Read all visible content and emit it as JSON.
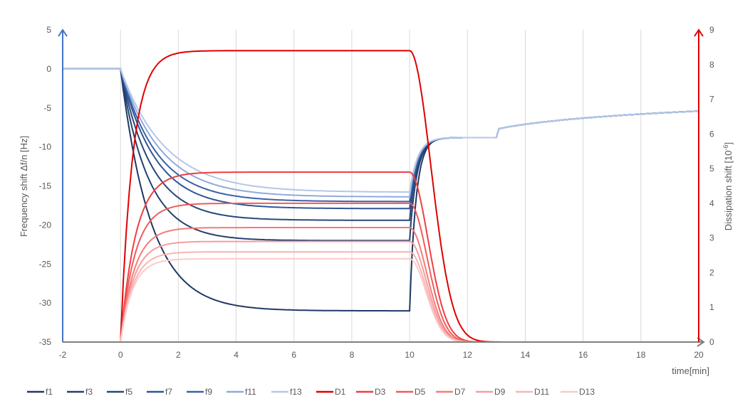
{
  "chart_data": {
    "type": "line",
    "title": "",
    "xlabel": "time[min]",
    "ylabel_left": "Frequency shift  Δf/n [Hz]",
    "ylabel_right_prefix": "Dissipation shift [10",
    "ylabel_right_exp": "-6",
    "ylabel_right_suffix": "]",
    "xlim": [
      -2,
      20
    ],
    "ylim_left": [
      -35,
      5
    ],
    "ylim_right": [
      0,
      9
    ],
    "x_ticks": [
      -2,
      0,
      2,
      4,
      6,
      8,
      10,
      12,
      14,
      16,
      18,
      20
    ],
    "y_left_ticks": [
      -35,
      -30,
      -25,
      -20,
      -15,
      -10,
      -5,
      0,
      5
    ],
    "y_right_ticks": [
      0,
      1,
      2,
      3,
      4,
      5,
      6,
      7,
      8,
      9
    ],
    "grid": "vertical",
    "legend_position": "bottom",
    "colors": {
      "left_axis": "#4472c4",
      "right_axis": "#e00000",
      "x_axis": "#7f7f7f",
      "grid": "#d9d9d9"
    },
    "frequency_series": [
      {
        "name": "f1",
        "color": "#203864",
        "plateau": -31.0,
        "k": 0.95
      },
      {
        "name": "f3",
        "color": "#23406f",
        "plateau": -22.0,
        "k": 1.05
      },
      {
        "name": "f5",
        "color": "#27487b",
        "plateau": -19.4,
        "k": 0.95
      },
      {
        "name": "f7",
        "color": "#2f5597",
        "plateau": -17.9,
        "k": 0.85
      },
      {
        "name": "f9",
        "color": "#3a62a8",
        "plateau": -17.0,
        "k": 0.8
      },
      {
        "name": "f11",
        "color": "#8faadc",
        "plateau": -16.4,
        "k": 0.72
      },
      {
        "name": "f13",
        "color": "#b4c7e7",
        "plateau": -15.8,
        "k": 0.65
      }
    ],
    "dissipation_series": [
      {
        "name": "D1",
        "color": "#e00000",
        "plateau": 8.4,
        "k": 2.4
      },
      {
        "name": "D3",
        "color": "#ef3f3f",
        "plateau": 4.9,
        "k": 1.9
      },
      {
        "name": "D5",
        "color": "#f25a5a",
        "plateau": 4.0,
        "k": 2.0
      },
      {
        "name": "D7",
        "color": "#f47a7a",
        "plateau": 3.3,
        "k": 2.1
      },
      {
        "name": "D9",
        "color": "#f79c9c",
        "plateau": 2.9,
        "k": 2.2
      },
      {
        "name": "D11",
        "color": "#f9b4b4",
        "plateau": 2.6,
        "k": 2.3
      },
      {
        "name": "D13",
        "color": "#fbcaca",
        "plateau": 2.4,
        "k": 2.4
      }
    ],
    "phases": {
      "baseline_end": 0,
      "exposure_end": 10,
      "recovery_value_at_12": -8.8,
      "recovery_value_at_20": -5.4
    }
  }
}
